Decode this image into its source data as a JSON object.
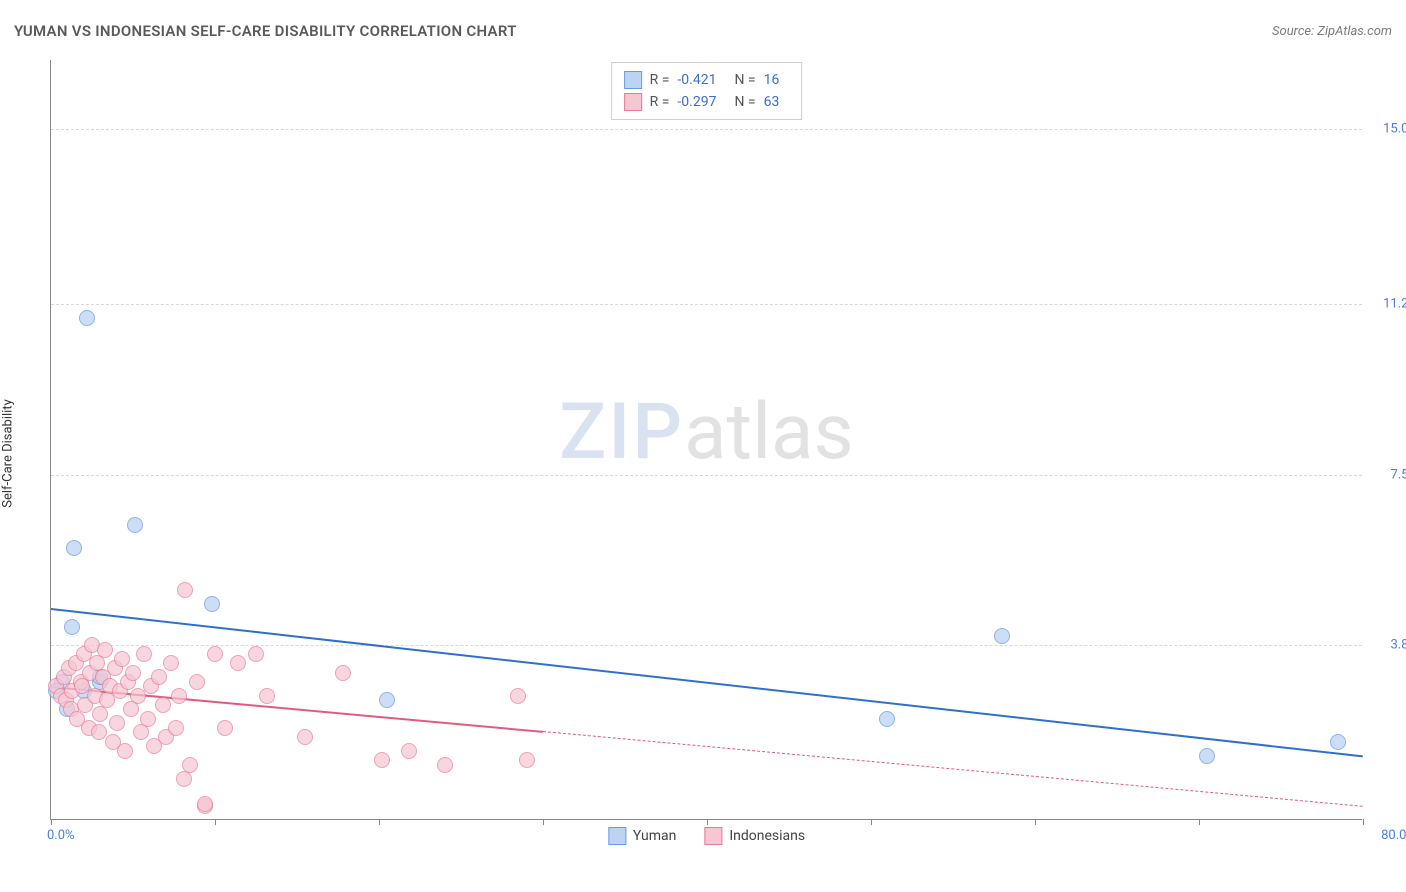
{
  "title": "YUMAN VS INDONESIAN SELF-CARE DISABILITY CORRELATION CHART",
  "source": "Source: ZipAtlas.com",
  "y_axis_label": "Self-Care Disability",
  "watermark": {
    "part1": "ZIP",
    "part2": "atlas"
  },
  "chart": {
    "type": "scatter",
    "background_color": "#ffffff",
    "grid_color": "#d8d8d8",
    "axis_color": "#888888",
    "xlim": [
      0,
      80
    ],
    "ylim": [
      0,
      16.5
    ],
    "x_tick_positions": [
      0,
      10,
      20,
      30,
      40,
      50,
      60,
      70,
      80
    ],
    "x_axis": {
      "min_label": "0.0%",
      "max_label": "80.0%"
    },
    "y_ticks": [
      {
        "value": 3.8,
        "label": "3.8%"
      },
      {
        "value": 7.5,
        "label": "7.5%"
      },
      {
        "value": 11.2,
        "label": "11.2%"
      },
      {
        "value": 15.0,
        "label": "15.0%"
      }
    ],
    "series": [
      {
        "name": "Yuman",
        "marker_fill": "#bcd4f2",
        "marker_stroke": "#6b9ae0",
        "marker_radius": 8,
        "fill_opacity": 0.75,
        "line_color": "#2f6fd0",
        "line_width": 2.5,
        "R": "-0.421",
        "N": "16",
        "regression": {
          "x1": 0,
          "y1": 4.6,
          "x2": 80,
          "y2": 1.4,
          "solid_until_x": 80
        },
        "points": [
          {
            "x": 2.2,
            "y": 10.9
          },
          {
            "x": 5.1,
            "y": 6.4
          },
          {
            "x": 1.4,
            "y": 5.9
          },
          {
            "x": 9.8,
            "y": 4.7
          },
          {
            "x": 1.3,
            "y": 4.2
          },
          {
            "x": 3.0,
            "y": 3.0
          },
          {
            "x": 2.0,
            "y": 2.8
          },
          {
            "x": 0.7,
            "y": 3.0
          },
          {
            "x": 3.0,
            "y": 3.1
          },
          {
            "x": 0.3,
            "y": 2.8
          },
          {
            "x": 20.5,
            "y": 2.6
          },
          {
            "x": 58.0,
            "y": 4.0
          },
          {
            "x": 51.0,
            "y": 2.2
          },
          {
            "x": 70.5,
            "y": 1.4
          },
          {
            "x": 78.5,
            "y": 1.7
          },
          {
            "x": 1.0,
            "y": 2.4
          }
        ]
      },
      {
        "name": "Indonesians",
        "marker_fill": "#f6c6d2",
        "marker_stroke": "#e77a98",
        "marker_radius": 8,
        "fill_opacity": 0.7,
        "line_color": "#e25a80",
        "line_width": 2.2,
        "R": "-0.297",
        "N": "63",
        "regression": {
          "x1": 0,
          "y1": 2.9,
          "x2": 80,
          "y2": 0.3,
          "solid_until_x": 30
        },
        "points": [
          {
            "x": 0.3,
            "y": 2.9
          },
          {
            "x": 0.6,
            "y": 2.7
          },
          {
            "x": 0.8,
            "y": 3.1
          },
          {
            "x": 0.9,
            "y": 2.6
          },
          {
            "x": 1.1,
            "y": 3.3
          },
          {
            "x": 1.2,
            "y": 2.4
          },
          {
            "x": 1.3,
            "y": 2.8
          },
          {
            "x": 1.5,
            "y": 3.4
          },
          {
            "x": 1.6,
            "y": 2.2
          },
          {
            "x": 1.8,
            "y": 3.0
          },
          {
            "x": 1.9,
            "y": 2.9
          },
          {
            "x": 2.0,
            "y": 3.6
          },
          {
            "x": 2.1,
            "y": 2.5
          },
          {
            "x": 2.3,
            "y": 2.0
          },
          {
            "x": 2.4,
            "y": 3.2
          },
          {
            "x": 2.5,
            "y": 3.8
          },
          {
            "x": 2.7,
            "y": 2.7
          },
          {
            "x": 2.8,
            "y": 3.4
          },
          {
            "x": 2.9,
            "y": 1.9
          },
          {
            "x": 3.0,
            "y": 2.3
          },
          {
            "x": 3.2,
            "y": 3.1
          },
          {
            "x": 3.3,
            "y": 3.7
          },
          {
            "x": 3.4,
            "y": 2.6
          },
          {
            "x": 3.6,
            "y": 2.9
          },
          {
            "x": 3.8,
            "y": 1.7
          },
          {
            "x": 3.9,
            "y": 3.3
          },
          {
            "x": 4.0,
            "y": 2.1
          },
          {
            "x": 4.2,
            "y": 2.8
          },
          {
            "x": 4.3,
            "y": 3.5
          },
          {
            "x": 4.5,
            "y": 1.5
          },
          {
            "x": 4.7,
            "y": 3.0
          },
          {
            "x": 4.9,
            "y": 2.4
          },
          {
            "x": 5.0,
            "y": 3.2
          },
          {
            "x": 5.3,
            "y": 2.7
          },
          {
            "x": 5.5,
            "y": 1.9
          },
          {
            "x": 5.7,
            "y": 3.6
          },
          {
            "x": 5.9,
            "y": 2.2
          },
          {
            "x": 6.1,
            "y": 2.9
          },
          {
            "x": 6.3,
            "y": 1.6
          },
          {
            "x": 6.6,
            "y": 3.1
          },
          {
            "x": 6.8,
            "y": 2.5
          },
          {
            "x": 7.0,
            "y": 1.8
          },
          {
            "x": 7.3,
            "y": 3.4
          },
          {
            "x": 7.6,
            "y": 2.0
          },
          {
            "x": 7.8,
            "y": 2.7
          },
          {
            "x": 8.1,
            "y": 0.9
          },
          {
            "x": 8.2,
            "y": 5.0
          },
          {
            "x": 8.5,
            "y": 1.2
          },
          {
            "x": 8.9,
            "y": 3.0
          },
          {
            "x": 9.4,
            "y": 0.3
          },
          {
            "x": 9.4,
            "y": 0.35
          },
          {
            "x": 10.0,
            "y": 3.6
          },
          {
            "x": 10.6,
            "y": 2.0
          },
          {
            "x": 11.4,
            "y": 3.4
          },
          {
            "x": 12.5,
            "y": 3.6
          },
          {
            "x": 13.2,
            "y": 2.7
          },
          {
            "x": 15.5,
            "y": 1.8
          },
          {
            "x": 17.8,
            "y": 3.2
          },
          {
            "x": 20.2,
            "y": 1.3
          },
          {
            "x": 21.8,
            "y": 1.5
          },
          {
            "x": 24.0,
            "y": 1.2
          },
          {
            "x": 28.5,
            "y": 2.7
          },
          {
            "x": 29.0,
            "y": 1.3
          }
        ]
      }
    ]
  },
  "legend_bottom": [
    {
      "label": "Yuman",
      "fill": "#bcd4f2",
      "stroke": "#6b9ae0"
    },
    {
      "label": "Indonesians",
      "fill": "#f6c6d2",
      "stroke": "#e77a98"
    }
  ]
}
